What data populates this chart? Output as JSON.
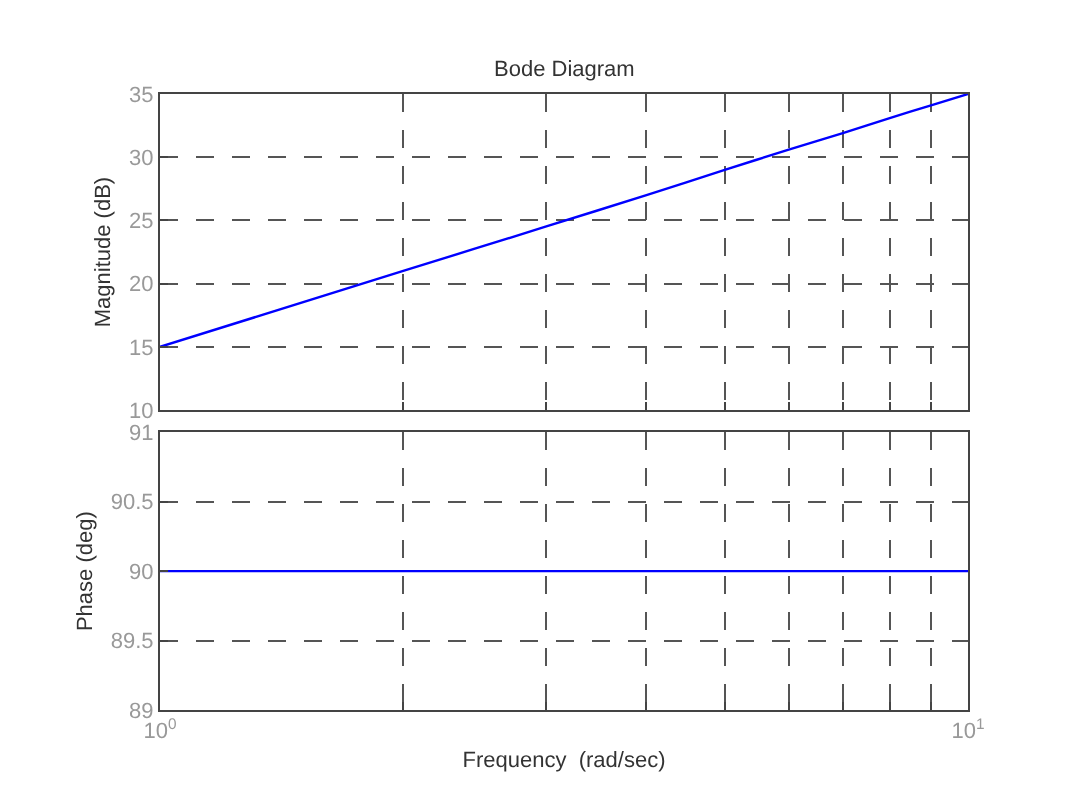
{
  "chart_data": [
    {
      "type": "line",
      "title": "Bode Diagram",
      "ylabel": "Magnitude (dB)",
      "x": [
        1,
        2,
        3,
        4,
        5,
        6,
        7,
        8,
        9,
        10
      ],
      "values": [
        15,
        21.0,
        24.5,
        27.0,
        29.0,
        30.6,
        31.9,
        33.1,
        34.1,
        35
      ],
      "color": "#0000ff",
      "log": "x",
      "xlim": [
        1,
        10
      ],
      "xticks": [
        {
          "value": 1,
          "label": null
        },
        {
          "value": 2,
          "label": null
        },
        {
          "value": 3,
          "label": null
        },
        {
          "value": 4,
          "label": null
        },
        {
          "value": 5,
          "label": null
        },
        {
          "value": 6,
          "label": null
        },
        {
          "value": 7,
          "label": null
        },
        {
          "value": 8,
          "label": null
        },
        {
          "value": 9,
          "label": null
        },
        {
          "value": 10,
          "label": null
        }
      ],
      "ylim": [
        10,
        35
      ],
      "yticks": [
        10,
        15,
        20,
        25,
        30,
        35
      ],
      "grid": true,
      "tick_labels": "y"
    },
    {
      "type": "line",
      "xlabel": "Frequency  (rad/sec)",
      "ylabel": "Phase (deg)",
      "x": [
        1,
        10
      ],
      "values": [
        90,
        90
      ],
      "color": "#0000ff",
      "log": "x",
      "xlim": [
        1,
        10
      ],
      "xticks": [
        {
          "value": 1,
          "label": "10$^{0}$"
        },
        {
          "value": 2,
          "label": null
        },
        {
          "value": 3,
          "label": null
        },
        {
          "value": 4,
          "label": null
        },
        {
          "value": 5,
          "label": null
        },
        {
          "value": 6,
          "label": null
        },
        {
          "value": 7,
          "label": null
        },
        {
          "value": 8,
          "label": null
        },
        {
          "value": 9,
          "label": null
        },
        {
          "value": 10,
          "label": "10$^{1}$"
        }
      ],
      "ylim": [
        89,
        91
      ],
      "yticks": [
        89,
        89.5,
        90,
        90.5,
        91
      ],
      "grid": true
    }
  ]
}
